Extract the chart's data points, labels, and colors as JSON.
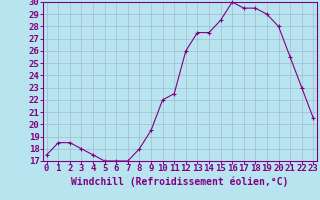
{
  "x": [
    0,
    1,
    2,
    3,
    4,
    5,
    6,
    7,
    8,
    9,
    10,
    11,
    12,
    13,
    14,
    15,
    16,
    17,
    18,
    19,
    20,
    21,
    22,
    23
  ],
  "y": [
    17.5,
    18.5,
    18.5,
    18.0,
    17.5,
    17.0,
    17.0,
    17.0,
    18.0,
    19.5,
    22.0,
    22.5,
    26.0,
    27.5,
    27.5,
    28.5,
    30.0,
    29.5,
    29.5,
    29.0,
    28.0,
    25.5,
    23.0,
    20.5
  ],
  "xlabel": "Windchill (Refroidissement éolien,°C)",
  "ylim_min": 17,
  "ylim_max": 30,
  "xlim_min": 0,
  "xlim_max": 23,
  "line_color": "#800080",
  "marker": "+",
  "bg_color": "#b8e4f0",
  "grid_color": "#9999bb",
  "yticks": [
    17,
    18,
    19,
    20,
    21,
    22,
    23,
    24,
    25,
    26,
    27,
    28,
    29,
    30
  ],
  "xticks": [
    0,
    1,
    2,
    3,
    4,
    5,
    6,
    7,
    8,
    9,
    10,
    11,
    12,
    13,
    14,
    15,
    16,
    17,
    18,
    19,
    20,
    21,
    22,
    23
  ],
  "xlabel_color": "#800080",
  "tick_color": "#800080",
  "spine_color": "#800080",
  "font_size": 6.5,
  "xlabel_font_size": 7,
  "marker_size": 3,
  "line_width": 0.8
}
